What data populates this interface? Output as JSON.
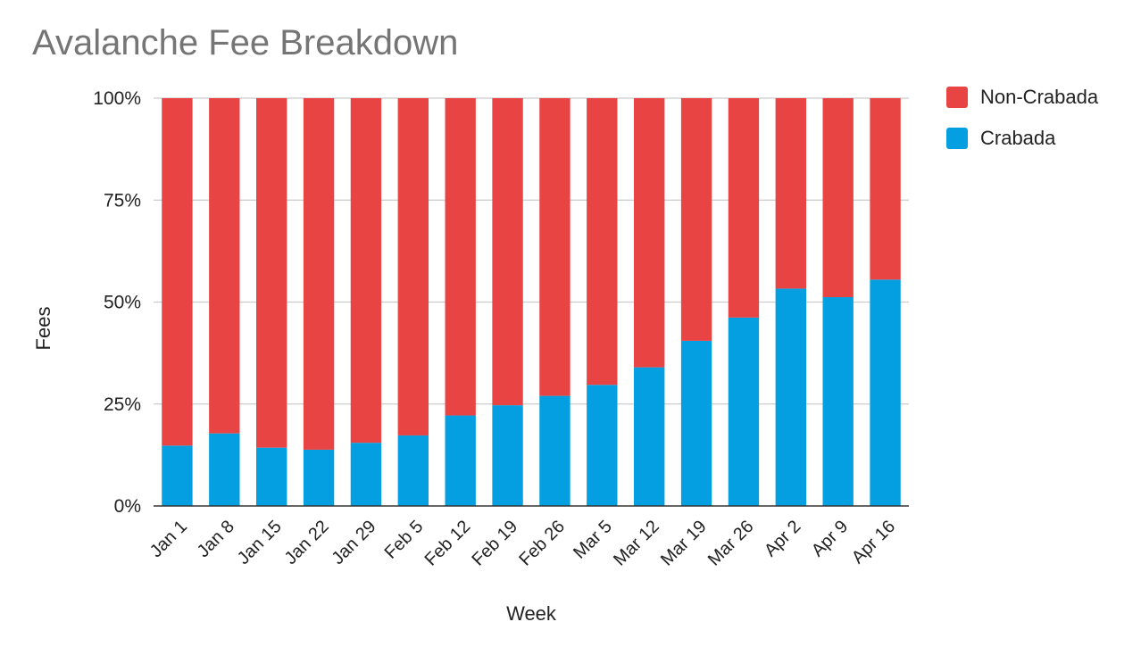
{
  "chart_data": {
    "type": "bar",
    "stacked": true,
    "normalized": true,
    "title": "Avalanche Fee Breakdown",
    "xlabel": "Week",
    "ylabel": "Fees",
    "ylim": [
      0,
      100
    ],
    "yticks": [
      "0%",
      "25%",
      "50%",
      "75%",
      "100%"
    ],
    "ytick_values": [
      0,
      25,
      50,
      75,
      100
    ],
    "categories": [
      "Jan 1",
      "Jan 8",
      "Jan 15",
      "Jan 22",
      "Jan 29",
      "Feb 5",
      "Feb 12",
      "Feb 19",
      "Feb 26",
      "Mar 5",
      "Mar 12",
      "Mar 19",
      "Mar 26",
      "Apr 2",
      "Apr 9",
      "Apr 16"
    ],
    "series": [
      {
        "name": "Crabada",
        "color": "#039fe0",
        "values": [
          14.8,
          17.8,
          14.3,
          13.8,
          15.5,
          17.3,
          22.2,
          24.7,
          27.0,
          29.7,
          34.0,
          40.5,
          46.2,
          53.3,
          51.2,
          55.5
        ]
      },
      {
        "name": "Non-Crabada",
        "color": "#e84444",
        "values": [
          85.2,
          82.2,
          85.7,
          86.2,
          84.5,
          82.7,
          77.8,
          75.3,
          73.0,
          70.3,
          66.0,
          59.5,
          53.8,
          46.7,
          48.8,
          44.5
        ]
      }
    ],
    "legend": {
      "position": "right",
      "items": [
        {
          "label": "Non-Crabada",
          "color": "#e84444"
        },
        {
          "label": "Crabada",
          "color": "#039fe0"
        }
      ]
    }
  }
}
